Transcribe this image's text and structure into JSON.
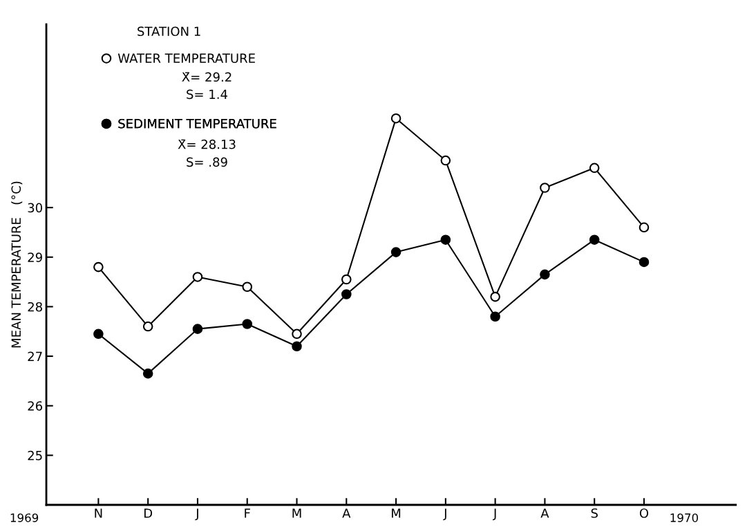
{
  "chart_data": {
    "type": "line",
    "title": "STATION 1",
    "ylabel": "MEAN TEMPERATURE   (°C)",
    "categories": [
      "N",
      "D",
      "J",
      "F",
      "M",
      "A",
      "M",
      "J",
      "J",
      "A",
      "S",
      "O"
    ],
    "series": [
      {
        "name": "WATER TEMPERATURE",
        "color": "#000000",
        "values": [
          28.8,
          27.6,
          28.6,
          28.4,
          27.45,
          28.55,
          31.8,
          30.95,
          28.2,
          30.4,
          30.8,
          29.6
        ]
      },
      {
        "name": "SEDIMENT TEMPERATURE",
        "color": "#000000",
        "values": [
          27.45,
          26.65,
          27.55,
          27.65,
          27.2,
          28.25,
          29.1,
          29.35,
          27.8,
          28.65,
          29.35,
          28.9
        ]
      }
    ],
    "ylim": [
      24,
      33.7
    ],
    "yticks": [
      25,
      26,
      27,
      28,
      29,
      30
    ],
    "marker": "circle",
    "line_style": "solid",
    "grid": false,
    "legend": "top left",
    "annotations": [
      "X̄= 29.2",
      "S= 1.4",
      "X̄= 28.13",
      "S= .89",
      "1969",
      "1970"
    ]
  }
}
